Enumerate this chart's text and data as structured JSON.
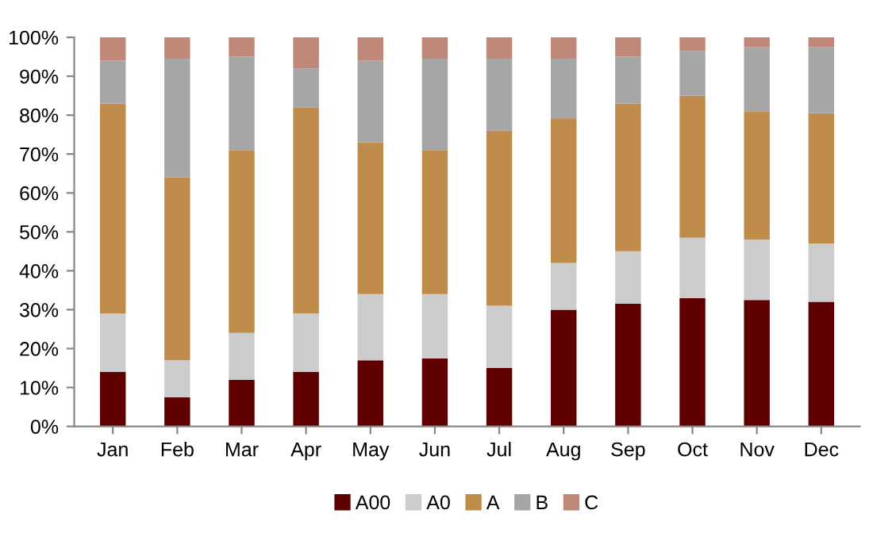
{
  "chart_data": {
    "type": "bar",
    "stacked": true,
    "categories": [
      "Jan",
      "Feb",
      "Mar",
      "Apr",
      "May",
      "Jun",
      "Jul",
      "Aug",
      "Sep",
      "Oct",
      "Nov",
      "Dec"
    ],
    "series": [
      {
        "name": "A00",
        "color": "#600000",
        "values": [
          14,
          7.5,
          12,
          14,
          17,
          17.5,
          15,
          30,
          31.5,
          33,
          32.5,
          32
        ]
      },
      {
        "name": "A0",
        "color": "#cccccc",
        "values": [
          15,
          9.5,
          12,
          15,
          17,
          16.5,
          16,
          12,
          13.5,
          15.5,
          15.5,
          15
        ]
      },
      {
        "name": "A",
        "color": "#c08c4c",
        "values": [
          54,
          47,
          47,
          53,
          39,
          37,
          45,
          37,
          38,
          36.5,
          33,
          33.5
        ]
      },
      {
        "name": "B",
        "color": "#a6a6a6",
        "values": [
          11,
          30.5,
          24,
          10,
          21,
          23.5,
          18.5,
          15.5,
          12,
          11.5,
          16.5,
          17
        ]
      },
      {
        "name": "C",
        "color": "#c08878",
        "values": [
          6,
          5.5,
          5,
          8,
          6,
          5.5,
          5.5,
          5.5,
          5,
          3.5,
          2.5,
          2.5
        ]
      }
    ],
    "ylim": [
      0,
      100
    ],
    "yticks": [
      {
        "value": 0,
        "label": "0%"
      },
      {
        "value": 10,
        "label": "10%"
      },
      {
        "value": 20,
        "label": "20%"
      },
      {
        "value": 30,
        "label": "30%"
      },
      {
        "value": 40,
        "label": "40%"
      },
      {
        "value": 50,
        "label": "50%"
      },
      {
        "value": 60,
        "label": "60%"
      },
      {
        "value": 70,
        "label": "70%"
      },
      {
        "value": 80,
        "label": "80%"
      },
      {
        "value": 90,
        "label": "90%"
      },
      {
        "value": 100,
        "label": "100%"
      }
    ],
    "grid": false,
    "legend": "bottom"
  }
}
